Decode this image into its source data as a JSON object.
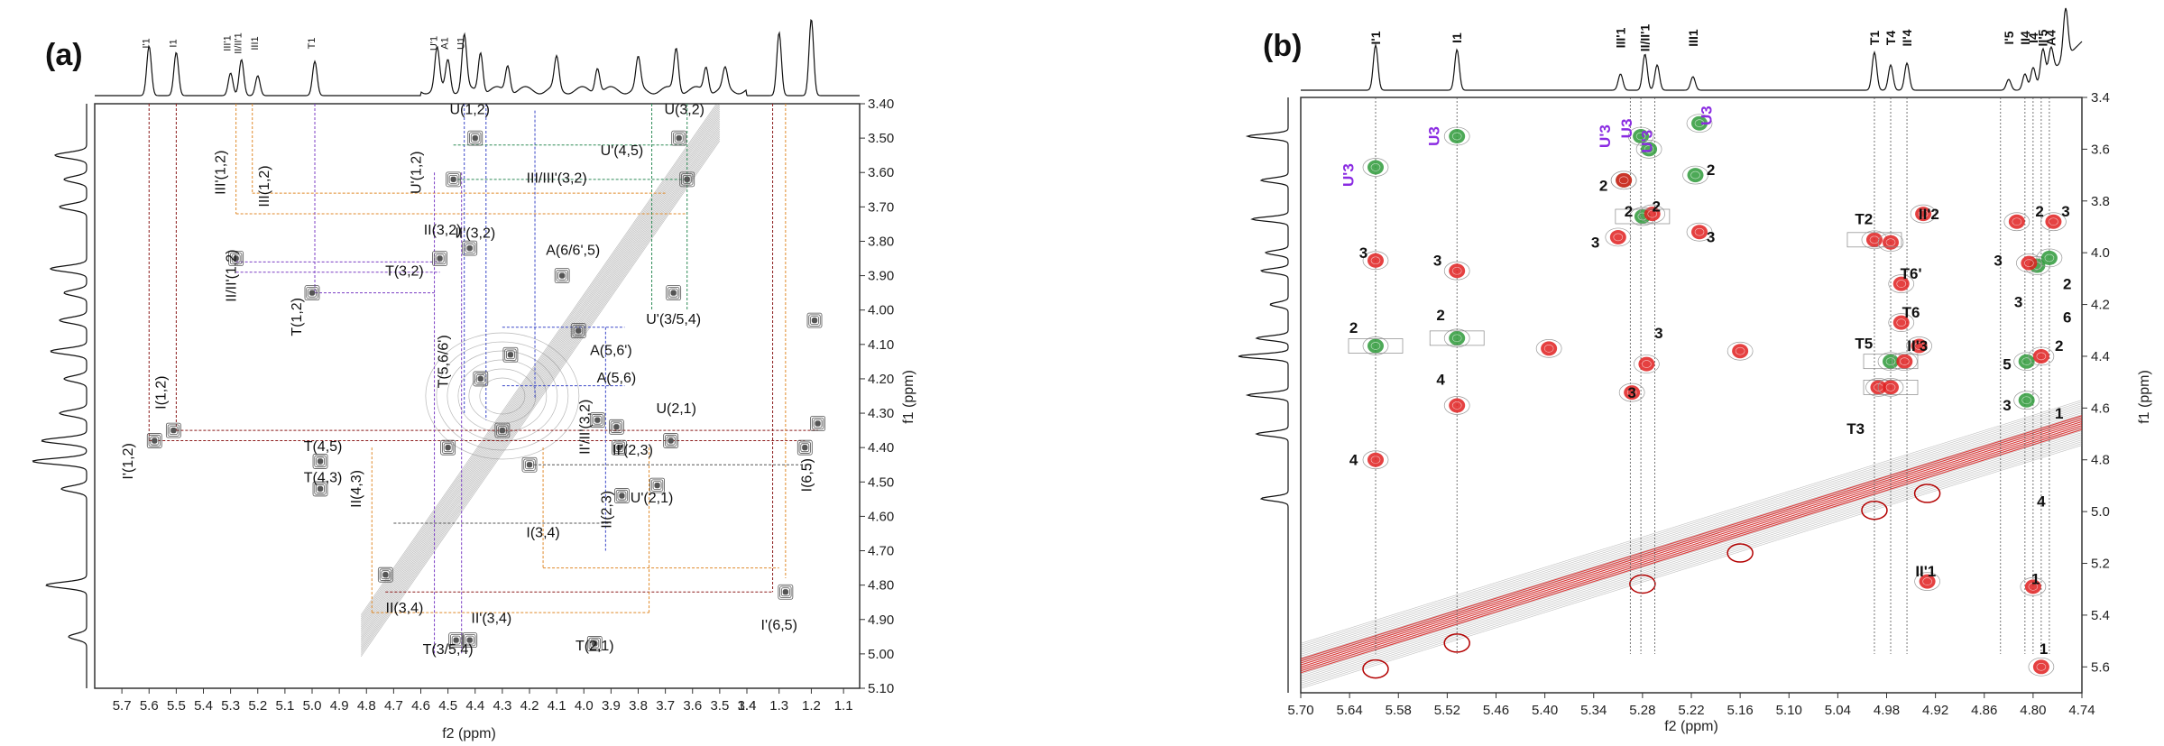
{
  "chart_data": [
    {
      "panel": "(a)",
      "type": "heatmap",
      "xlabel": "f2 (ppm)",
      "ylabel": "f1 (ppm)",
      "xlim": [
        5.8,
        1.05
      ],
      "ylim": [
        3.4,
        5.1
      ],
      "x_ticks": [
        "5.7",
        "5.6",
        "5.5",
        "5.4",
        "5.3",
        "5.2",
        "5.1",
        "5.0",
        "4.9",
        "4.8",
        "4.7",
        "4.6",
        "4.5",
        "4.4",
        "4.3",
        "4.2",
        "4.1",
        "4.0",
        "3.9",
        "3.8",
        "3.7",
        "3.6",
        "3.5",
        "3.4",
        "1.4",
        "1.3",
        "1.2",
        "1.1"
      ],
      "y_ticks": [
        "3.40",
        "3.50",
        "3.60",
        "3.70",
        "3.80",
        "3.90",
        "4.00",
        "4.10",
        "4.20",
        "4.30",
        "4.40",
        "4.50",
        "4.60",
        "4.70",
        "4.80",
        "4.90",
        "5.00",
        "5.10"
      ],
      "top_peaks": [
        {
          "label": "I'1",
          "x": 5.6
        },
        {
          "label": "I1",
          "x": 5.5
        },
        {
          "label": "III'1",
          "x": 5.3
        },
        {
          "label": "II/II'1",
          "x": 5.26
        },
        {
          "label": "III1",
          "x": 5.2
        },
        {
          "label": "T1",
          "x": 4.99
        },
        {
          "label": "U'1",
          "x": 4.54
        },
        {
          "label": "A1",
          "x": 4.5
        },
        {
          "label": "U1",
          "x": 4.44
        }
      ],
      "annotations": [
        {
          "text": "U(1,2)",
          "x": 4.42,
          "y": 3.43
        },
        {
          "text": "U(3,2)",
          "x": 3.63,
          "y": 3.43
        },
        {
          "text": "U'(4,5)",
          "x": 3.86,
          "y": 3.55
        },
        {
          "text": "U'(1,2)",
          "x": 4.6,
          "y": 3.6
        },
        {
          "text": "III/III'(3,2)",
          "x": 4.1,
          "y": 3.63
        },
        {
          "text": "III'(1,2)",
          "x": 5.32,
          "y": 3.6
        },
        {
          "text": "III(1,2)",
          "x": 5.16,
          "y": 3.64
        },
        {
          "text": "II(3,2)",
          "x": 4.52,
          "y": 3.78
        },
        {
          "text": "II'(3,2)",
          "x": 4.4,
          "y": 3.79
        },
        {
          "text": "A(6/6',5)",
          "x": 4.04,
          "y": 3.84
        },
        {
          "text": "T(3,2)",
          "x": 4.66,
          "y": 3.9
        },
        {
          "text": "II/II'(1,2)",
          "x": 5.28,
          "y": 3.9
        },
        {
          "text": "T(1,2)",
          "x": 5.04,
          "y": 4.02
        },
        {
          "text": "U'(3/5,4)",
          "x": 3.67,
          "y": 4.04
        },
        {
          "text": "A(5,6')",
          "x": 3.9,
          "y": 4.13
        },
        {
          "text": "A(5,6)",
          "x": 3.88,
          "y": 4.21
        },
        {
          "text": "T(5,6/6')",
          "x": 4.5,
          "y": 4.15
        },
        {
          "text": "I(1,2)",
          "x": 5.54,
          "y": 4.24
        },
        {
          "text": "U(2,1)",
          "x": 3.66,
          "y": 4.3
        },
        {
          "text": "II'/II'(3,2)",
          "x": 3.98,
          "y": 4.34
        },
        {
          "text": "T(4,5)",
          "x": 4.96,
          "y": 4.41
        },
        {
          "text": "II'(2,3)",
          "x": 3.82,
          "y": 4.42
        },
        {
          "text": "I'(1,2)",
          "x": 5.66,
          "y": 4.44
        },
        {
          "text": "T(4,3)",
          "x": 4.96,
          "y": 4.5
        },
        {
          "text": "II(4,3)",
          "x": 4.82,
          "y": 4.52
        },
        {
          "text": "U'(2,1)",
          "x": 3.75,
          "y": 4.56
        },
        {
          "text": "II(2,3)",
          "x": 3.9,
          "y": 4.58
        },
        {
          "text": "I(6,5)",
          "x": 1.2,
          "y": 4.48
        },
        {
          "text": "I(3,4)",
          "x": 4.15,
          "y": 4.66
        },
        {
          "text": "II(3,4)",
          "x": 4.66,
          "y": 4.88
        },
        {
          "text": "II'(3,4)",
          "x": 4.34,
          "y": 4.91
        },
        {
          "text": "I'(6,5)",
          "x": 1.3,
          "y": 4.93
        },
        {
          "text": "T(3/5,4)",
          "x": 4.5,
          "y": 5.0
        },
        {
          "text": "T(2,1)",
          "x": 3.96,
          "y": 4.99
        }
      ]
    },
    {
      "panel": "(b)",
      "type": "heatmap",
      "xlabel": "f2 (ppm)",
      "ylabel": "f1 (ppm)",
      "xlim": [
        5.7,
        4.74
      ],
      "ylim": [
        3.4,
        5.7
      ],
      "x_ticks": [
        "5.70",
        "5.64",
        "5.58",
        "5.52",
        "5.46",
        "5.40",
        "5.34",
        "5.28",
        "5.22",
        "5.16",
        "5.10",
        "5.04",
        "4.98",
        "4.92",
        "4.86",
        "4.80",
        "4.74"
      ],
      "y_ticks": [
        "3.4",
        "3.6",
        "3.8",
        "4.0",
        "4.2",
        "4.4",
        "4.6",
        "4.8",
        "5.0",
        "5.2",
        "5.4",
        "5.6"
      ],
      "top_peaks": [
        {
          "label": "I'1",
          "x": 5.608
        },
        {
          "label": "I1",
          "x": 5.508
        },
        {
          "label": "III'1",
          "x": 5.307
        },
        {
          "label": "II/II'1",
          "x": 5.277
        },
        {
          "label": "III1",
          "x": 5.218
        },
        {
          "label": "T1",
          "x": 4.995
        },
        {
          "label": "T4",
          "x": 4.975
        },
        {
          "label": "II'4",
          "x": 4.955
        },
        {
          "label": "I'5",
          "x": 4.83
        },
        {
          "label": "II4",
          "x": 4.81
        },
        {
          "label": "I4",
          "x": 4.8
        },
        {
          "label": "II'5",
          "x": 4.788
        },
        {
          "label": "A4",
          "x": 4.778
        }
      ],
      "annotations": [
        {
          "text": "U'3",
          "x": 5.635,
          "y": 3.7,
          "color": "purple"
        },
        {
          "text": "U3",
          "x": 5.53,
          "y": 3.55,
          "color": "purple"
        },
        {
          "text": "U'3",
          "x": 5.32,
          "y": 3.55,
          "color": "purple"
        },
        {
          "text": "U3",
          "x": 5.293,
          "y": 3.52,
          "color": "purple"
        },
        {
          "text": "U'3",
          "x": 5.268,
          "y": 3.57,
          "color": "purple"
        },
        {
          "text": "U3",
          "x": 5.195,
          "y": 3.47,
          "color": "purple"
        },
        {
          "text": "2",
          "x": 5.328,
          "y": 3.76
        },
        {
          "text": "2",
          "x": 5.196,
          "y": 3.7
        },
        {
          "text": "2",
          "x": 5.297,
          "y": 3.86
        },
        {
          "text": "2",
          "x": 5.263,
          "y": 3.84
        },
        {
          "text": "3",
          "x": 5.338,
          "y": 3.98
        },
        {
          "text": "3",
          "x": 5.196,
          "y": 3.96
        },
        {
          "text": "3",
          "x": 5.623,
          "y": 4.02
        },
        {
          "text": "3",
          "x": 5.532,
          "y": 4.05
        },
        {
          "text": "2",
          "x": 5.635,
          "y": 4.31
        },
        {
          "text": "2",
          "x": 5.528,
          "y": 4.26
        },
        {
          "text": "3",
          "x": 5.26,
          "y": 4.33
        },
        {
          "text": "3",
          "x": 5.293,
          "y": 4.56
        },
        {
          "text": "4",
          "x": 5.528,
          "y": 4.51
        },
        {
          "text": "4",
          "x": 5.635,
          "y": 4.82
        },
        {
          "text": "T2",
          "x": 5.008,
          "y": 3.89
        },
        {
          "text": "II'2",
          "x": 4.928,
          "y": 3.87
        },
        {
          "text": "T6'",
          "x": 4.95,
          "y": 4.1
        },
        {
          "text": "T6",
          "x": 4.95,
          "y": 4.25
        },
        {
          "text": "T5",
          "x": 5.008,
          "y": 4.37
        },
        {
          "text": "II'3",
          "x": 4.942,
          "y": 4.38
        },
        {
          "text": "T3",
          "x": 5.018,
          "y": 4.7
        },
        {
          "text": "3",
          "x": 4.843,
          "y": 4.05
        },
        {
          "text": "2",
          "x": 4.792,
          "y": 3.86
        },
        {
          "text": "3",
          "x": 4.76,
          "y": 3.86
        },
        {
          "text": "3",
          "x": 4.818,
          "y": 4.21
        },
        {
          "text": "2",
          "x": 4.758,
          "y": 4.14
        },
        {
          "text": "6",
          "x": 4.758,
          "y": 4.27
        },
        {
          "text": "2",
          "x": 4.768,
          "y": 4.38
        },
        {
          "text": "5",
          "x": 4.832,
          "y": 4.45
        },
        {
          "text": "3",
          "x": 4.832,
          "y": 4.61
        },
        {
          "text": "1",
          "x": 4.768,
          "y": 4.64
        },
        {
          "text": "4",
          "x": 4.79,
          "y": 4.98
        },
        {
          "text": "II'1",
          "x": 4.932,
          "y": 5.25
        },
        {
          "text": "1",
          "x": 4.797,
          "y": 5.28
        },
        {
          "text": "1",
          "x": 4.787,
          "y": 5.55
        }
      ]
    }
  ]
}
